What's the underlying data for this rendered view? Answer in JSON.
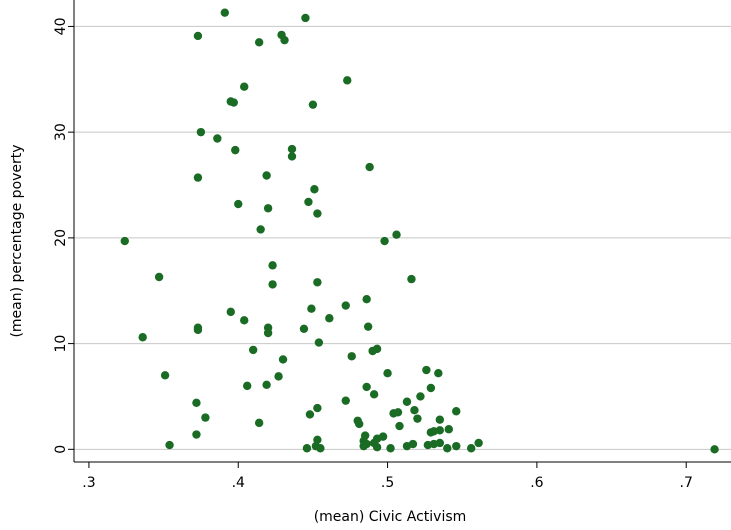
{
  "colors": {
    "marker": "#1a6b24",
    "gridline": "#c8c8c8",
    "axis": "#000000"
  },
  "chart_data": {
    "type": "scatter",
    "xlabel": "(mean) Civic Activism",
    "ylabel": "(mean) percentage poverty",
    "xlim": [
      0.29,
      0.73
    ],
    "ylim": [
      -1.2,
      42.5
    ],
    "xticks": [
      {
        "value": 0.3,
        "label": ".3"
      },
      {
        "value": 0.4,
        "label": ".4"
      },
      {
        "value": 0.5,
        "label": ".5"
      },
      {
        "value": 0.6,
        "label": ".6"
      },
      {
        "value": 0.7,
        "label": ".7"
      }
    ],
    "yticks": [
      {
        "value": 0,
        "label": "0"
      },
      {
        "value": 10,
        "label": "10"
      },
      {
        "value": 20,
        "label": "20"
      },
      {
        "value": 30,
        "label": "30"
      },
      {
        "value": 40,
        "label": "40"
      }
    ],
    "grid": "horizontal",
    "legend": "none",
    "series": [
      {
        "x": [
          0.391,
          0.445,
          0.373,
          0.429,
          0.431,
          0.414,
          0.473,
          0.404,
          0.397,
          0.395,
          0.45,
          0.375,
          0.386,
          0.436,
          0.436,
          0.398,
          0.488,
          0.373,
          0.419,
          0.451,
          0.4,
          0.447,
          0.42,
          0.453,
          0.415,
          0.506,
          0.324,
          0.498,
          0.423,
          0.347,
          0.516,
          0.423,
          0.453,
          0.486,
          0.472,
          0.449,
          0.395,
          0.461,
          0.404,
          0.373,
          0.42,
          0.373,
          0.487,
          0.336,
          0.42,
          0.444,
          0.41,
          0.454,
          0.493,
          0.49,
          0.43,
          0.476,
          0.351,
          0.526,
          0.534,
          0.5,
          0.406,
          0.419,
          0.427,
          0.529,
          0.486,
          0.372,
          0.472,
          0.513,
          0.522,
          0.491,
          0.378,
          0.546,
          0.504,
          0.507,
          0.448,
          0.453,
          0.48,
          0.518,
          0.535,
          0.481,
          0.52,
          0.414,
          0.508,
          0.529,
          0.541,
          0.535,
          0.531,
          0.372,
          0.497,
          0.485,
          0.493,
          0.453,
          0.484,
          0.354,
          0.491,
          0.535,
          0.531,
          0.527,
          0.561,
          0.486,
          0.484,
          0.513,
          0.517,
          0.546,
          0.446,
          0.452,
          0.455,
          0.502,
          0.493,
          0.54,
          0.556,
          0.719
        ],
        "y": [
          41.3,
          40.8,
          39.1,
          39.2,
          38.7,
          38.5,
          34.9,
          34.3,
          32.8,
          32.9,
          32.6,
          30.0,
          29.4,
          28.4,
          27.7,
          28.3,
          26.7,
          25.7,
          25.9,
          24.6,
          23.2,
          23.4,
          22.8,
          22.3,
          20.8,
          20.3,
          19.7,
          19.7,
          17.4,
          16.3,
          16.1,
          15.6,
          15.8,
          14.2,
          13.6,
          13.3,
          13.0,
          12.4,
          12.2,
          11.5,
          11.5,
          11.3,
          11.6,
          10.6,
          11.0,
          11.4,
          9.4,
          10.1,
          9.5,
          9.3,
          8.5,
          8.8,
          7.0,
          7.5,
          7.2,
          7.2,
          6.0,
          6.1,
          6.9,
          5.8,
          5.9,
          4.4,
          4.6,
          4.5,
          5.0,
          5.2,
          3.0,
          3.6,
          3.4,
          3.5,
          3.3,
          3.9,
          2.7,
          3.7,
          2.8,
          2.4,
          2.9,
          2.5,
          2.2,
          1.6,
          1.9,
          1.8,
          1.7,
          1.4,
          1.2,
          1.3,
          1.0,
          0.9,
          0.8,
          0.4,
          0.6,
          0.6,
          0.5,
          0.4,
          0.6,
          0.5,
          0.3,
          0.3,
          0.5,
          0.3,
          0.1,
          0.3,
          0.1,
          0.1,
          0.2,
          0.1,
          0.1,
          0.0
        ]
      }
    ]
  }
}
